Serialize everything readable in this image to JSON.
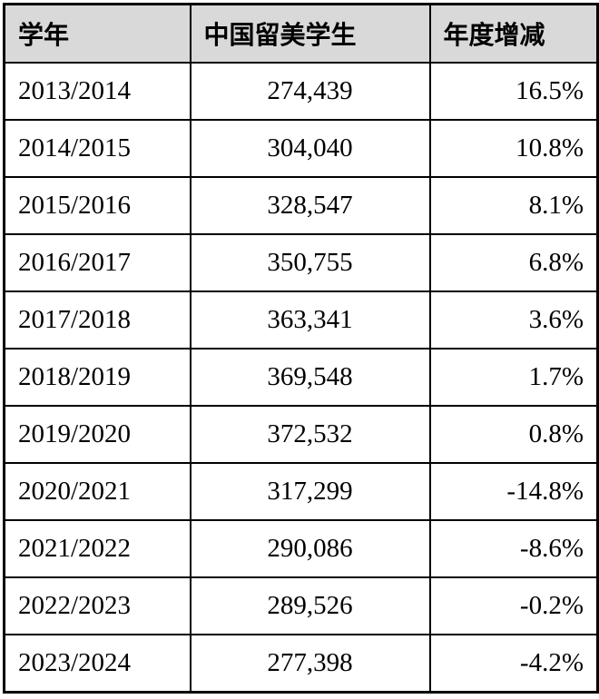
{
  "colors": {
    "header_bg": "#d9d9d9",
    "border": "#000000",
    "row_bg": "#ffffff",
    "text": "#000000"
  },
  "chart_data": {
    "type": "table",
    "title": "",
    "columns": [
      "学年",
      "中国留美学生",
      "年度增减"
    ],
    "rows": [
      {
        "year": "2013/2014",
        "students": "274,439",
        "change": "16.5%"
      },
      {
        "year": "2014/2015",
        "students": "304,040",
        "change": "10.8%"
      },
      {
        "year": "2015/2016",
        "students": "328,547",
        "change": "8.1%"
      },
      {
        "year": "2016/2017",
        "students": "350,755",
        "change": "6.8%"
      },
      {
        "year": "2017/2018",
        "students": "363,341",
        "change": "3.6%"
      },
      {
        "year": "2018/2019",
        "students": "369,548",
        "change": "1.7%"
      },
      {
        "year": "2019/2020",
        "students": "372,532",
        "change": "0.8%"
      },
      {
        "year": "2020/2021",
        "students": "317,299",
        "change": "-14.8%"
      },
      {
        "year": "2021/2022",
        "students": "290,086",
        "change": "-8.6%"
      },
      {
        "year": "2022/2023",
        "students": "289,526",
        "change": "-0.2%"
      },
      {
        "year": "2023/2024",
        "students": "277,398",
        "change": "-4.2%"
      }
    ]
  }
}
